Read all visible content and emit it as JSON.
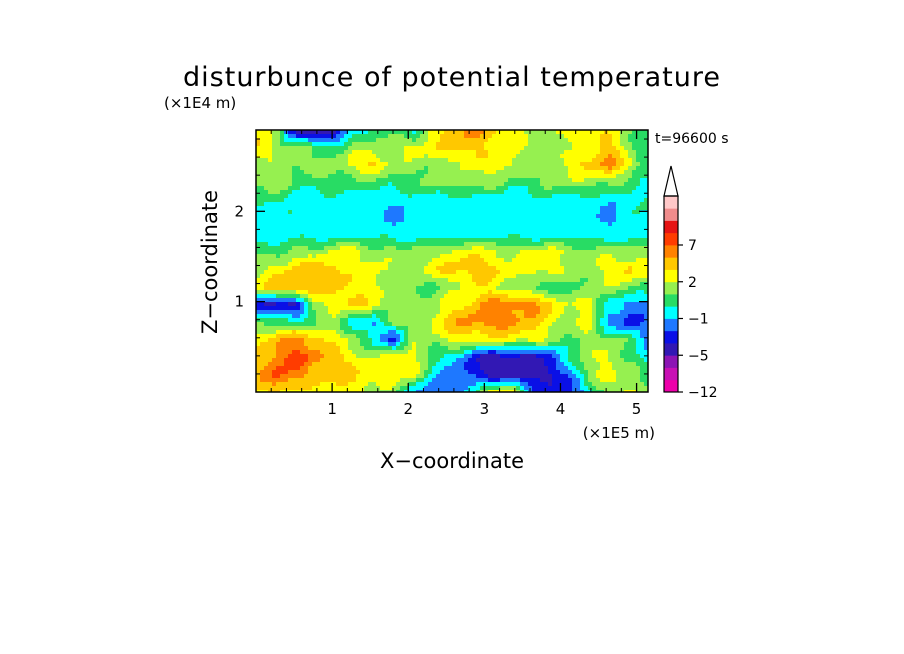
{
  "chart_data": {
    "type": "heatmap",
    "title": "disturbunce of potential temperature",
    "xlabel": "X−coordinate",
    "ylabel": "Z−coordinate",
    "x_unit": "(×1E5 m)",
    "y_unit": "(×1E4 m)",
    "time_label": "t=96600 s",
    "xlim": [
      0,
      5.15
    ],
    "ylim": [
      0,
      2.9
    ],
    "x_ticks": [
      {
        "value": 1,
        "label": "1"
      },
      {
        "value": 2,
        "label": "2"
      },
      {
        "value": 3,
        "label": "3"
      },
      {
        "value": 4,
        "label": "4"
      },
      {
        "value": 5,
        "label": "5"
      }
    ],
    "y_ticks": [
      {
        "value": 1,
        "label": "1"
      },
      {
        "value": 2,
        "label": "2"
      }
    ],
    "colorbar": {
      "levels": [
        -12,
        -10,
        -8,
        -5,
        -4,
        -3,
        -1,
        0,
        1,
        2,
        3,
        5,
        7,
        9,
        11
      ],
      "labels": [
        {
          "value": -12,
          "label": "−12"
        },
        {
          "value": -5,
          "label": "−5"
        },
        {
          "value": -1,
          "label": "−1"
        },
        {
          "value": 2,
          "label": "2"
        },
        {
          "value": 7,
          "label": "7"
        }
      ],
      "colors": [
        "#ee00aa",
        "#c810b4",
        "#8c14b4",
        "#3218b4",
        "#0a10e6",
        "#1e78ff",
        "#00ffff",
        "#28dc64",
        "#96f050",
        "#ffff00",
        "#ffc800",
        "#ff8200",
        "#ff3c00",
        "#e61414",
        "#f08c8c",
        "#ffc8c8"
      ],
      "extend": "max"
    },
    "field": [
      [
        9,
        8,
        3,
        2,
        3,
        6,
        7,
        7,
        6,
        9,
        10,
        11,
        10,
        9,
        8,
        8,
        9,
        9,
        9,
        8,
        7
      ],
      [
        10,
        8,
        8,
        7,
        7,
        8,
        8,
        8,
        9,
        9,
        10,
        10,
        9,
        9,
        8,
        8,
        8,
        9,
        10,
        8,
        6
      ],
      [
        8,
        8,
        8,
        8,
        8,
        9,
        10,
        8,
        8,
        8,
        8,
        9,
        9,
        9,
        8,
        8,
        9,
        10,
        11,
        9,
        7
      ],
      [
        8,
        8,
        7,
        7,
        7,
        7,
        7,
        7,
        7,
        8,
        8,
        8,
        8,
        7,
        7,
        8,
        8,
        8,
        8,
        7,
        6
      ],
      [
        7,
        7,
        6,
        6,
        6,
        6,
        6,
        6,
        6,
        6,
        6,
        6,
        6,
        6,
        6,
        6,
        6,
        6,
        6,
        6,
        7
      ],
      [
        6,
        6,
        6,
        6,
        6,
        6,
        6,
        5,
        6,
        6,
        6,
        6,
        6,
        6,
        6,
        6,
        6,
        6,
        5,
        6,
        6
      ],
      [
        6,
        6,
        6,
        6,
        6,
        6,
        6,
        6,
        6,
        6,
        6,
        6,
        6,
        6,
        6,
        6,
        6,
        6,
        6,
        6,
        6
      ],
      [
        7,
        7,
        8,
        8,
        9,
        9,
        8,
        8,
        8,
        8,
        9,
        9,
        9,
        8,
        9,
        9,
        8,
        8,
        8,
        8,
        8
      ],
      [
        8,
        9,
        10,
        10,
        10,
        9,
        9,
        8,
        8,
        9,
        10,
        10,
        10,
        9,
        9,
        9,
        8,
        8,
        9,
        10,
        9
      ],
      [
        9,
        10,
        11,
        10,
        10,
        9,
        9,
        8,
        8,
        7,
        8,
        9,
        9,
        8,
        7,
        7,
        7,
        8,
        8,
        8,
        7
      ],
      [
        4,
        3,
        3,
        8,
        9,
        10,
        9,
        8,
        8,
        8,
        9,
        10,
        11,
        11,
        11,
        10,
        8,
        9,
        6,
        5,
        5
      ],
      [
        8,
        7,
        7,
        7,
        8,
        6,
        5,
        8,
        8,
        9,
        10,
        11,
        11,
        11,
        10,
        9,
        8,
        9,
        5,
        4,
        5
      ],
      [
        9,
        10,
        11,
        10,
        9,
        8,
        6,
        4,
        8,
        8,
        9,
        9,
        9,
        9,
        9,
        8,
        7,
        8,
        8,
        7,
        5
      ],
      [
        10,
        11,
        12,
        11,
        10,
        9,
        8,
        9,
        9,
        7,
        6,
        4,
        3,
        3,
        3,
        4,
        7,
        8,
        9,
        7,
        6
      ],
      [
        10,
        12,
        11,
        10,
        10,
        10,
        9,
        9,
        9,
        6,
        5,
        4,
        3,
        3,
        3,
        3,
        5,
        8,
        9,
        8,
        7
      ],
      [
        9,
        10,
        9,
        9,
        9,
        9,
        8,
        8,
        6,
        4,
        5,
        6,
        9,
        9,
        5,
        4,
        4,
        6,
        8,
        9,
        7
      ]
    ]
  }
}
